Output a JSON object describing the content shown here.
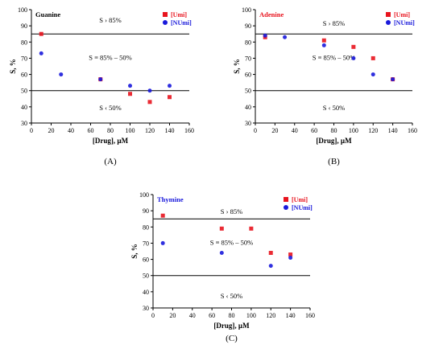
{
  "panels": [
    {
      "chart_data": {
        "type": "scatter",
        "title": "Guanine",
        "title_color": "#000000",
        "xlabel": "[Drug], µM",
        "ylabel": "S, %",
        "xlim": [
          0,
          160
        ],
        "ylim": [
          30,
          100
        ],
        "xticks": [
          0,
          20,
          40,
          60,
          80,
          100,
          120,
          140,
          160
        ],
        "yticks": [
          30,
          40,
          50,
          60,
          70,
          80,
          90,
          100
        ],
        "grid": false,
        "legend_position": "top-right",
        "series": [
          {
            "name": "[Umi]",
            "color": "#e8141e",
            "marker": "square",
            "points": [
              [
                10,
                85
              ],
              [
                70,
                57
              ],
              [
                100,
                48
              ],
              [
                120,
                43
              ],
              [
                140,
                46
              ]
            ]
          },
          {
            "name": "[NUmi]",
            "color": "#1a1adb",
            "marker": "circle",
            "points": [
              [
                10,
                73
              ],
              [
                30,
                60
              ],
              [
                70,
                57
              ],
              [
                100,
                53
              ],
              [
                120,
                50
              ],
              [
                140,
                53
              ]
            ]
          }
        ],
        "reference_lines": [
          85,
          50
        ],
        "annotations": [
          {
            "text": "S › 85%",
            "x": 80,
            "y": 92
          },
          {
            "text": "S ≡ 85% – 50%",
            "x": 80,
            "y": 69
          },
          {
            "text": "S ‹ 50%",
            "x": 80,
            "y": 38
          }
        ]
      },
      "caption": "(A)"
    },
    {
      "chart_data": {
        "type": "scatter",
        "title": "Adenine",
        "title_color": "#e8141e",
        "xlabel": "[Drug], µM",
        "ylabel": "S, %",
        "xlim": [
          0,
          160
        ],
        "ylim": [
          30,
          100
        ],
        "xticks": [
          0,
          20,
          40,
          60,
          80,
          100,
          120,
          140,
          160
        ],
        "yticks": [
          30,
          40,
          50,
          60,
          70,
          80,
          90,
          100
        ],
        "grid": false,
        "legend_position": "top-right",
        "series": [
          {
            "name": "[Umi]",
            "color": "#e8141e",
            "marker": "square",
            "points": [
              [
                10,
                83
              ],
              [
                70,
                81
              ],
              [
                100,
                77
              ],
              [
                120,
                70
              ],
              [
                140,
                57
              ]
            ]
          },
          {
            "name": "[NUmi]",
            "color": "#1a1adb",
            "marker": "circle",
            "points": [
              [
                10,
                84
              ],
              [
                30,
                83
              ],
              [
                70,
                78
              ],
              [
                100,
                70
              ],
              [
                120,
                60
              ],
              [
                140,
                57
              ]
            ]
          }
        ],
        "reference_lines": [
          85,
          50
        ],
        "annotations": [
          {
            "text": "S › 85%",
            "x": 80,
            "y": 90
          },
          {
            "text": "S ≡ 85% – 50%",
            "x": 80,
            "y": 69
          },
          {
            "text": "S ‹ 50%",
            "x": 80,
            "y": 38
          }
        ]
      },
      "caption": "(B)"
    },
    {
      "chart_data": {
        "type": "scatter",
        "title": "Thymine",
        "title_color": "#1a1adb",
        "xlabel": "[Drug], µM",
        "ylabel": "S, %",
        "xlim": [
          0,
          160
        ],
        "ylim": [
          30,
          100
        ],
        "xticks": [
          0,
          20,
          40,
          60,
          80,
          100,
          120,
          140,
          160
        ],
        "yticks": [
          30,
          40,
          50,
          60,
          70,
          80,
          90,
          100
        ],
        "grid": false,
        "legend_position": "top-right",
        "series": [
          {
            "name": "[Umi]",
            "color": "#e8141e",
            "marker": "square",
            "points": [
              [
                10,
                87
              ],
              [
                70,
                79
              ],
              [
                100,
                79
              ],
              [
                120,
                64
              ],
              [
                140,
                63
              ]
            ]
          },
          {
            "name": "[NUmi]",
            "color": "#1a1adb",
            "marker": "circle",
            "points": [
              [
                10,
                70
              ],
              [
                70,
                64
              ],
              [
                120,
                56
              ],
              [
                140,
                61
              ]
            ]
          }
        ],
        "reference_lines": [
          85,
          50
        ],
        "annotations": [
          {
            "text": "S › 85%",
            "x": 80,
            "y": 88
          },
          {
            "text": "S ≡ 85% – 50%",
            "x": 80,
            "y": 69
          },
          {
            "text": "S ‹ 50%",
            "x": 80,
            "y": 36
          }
        ]
      },
      "caption": "(C)"
    }
  ]
}
